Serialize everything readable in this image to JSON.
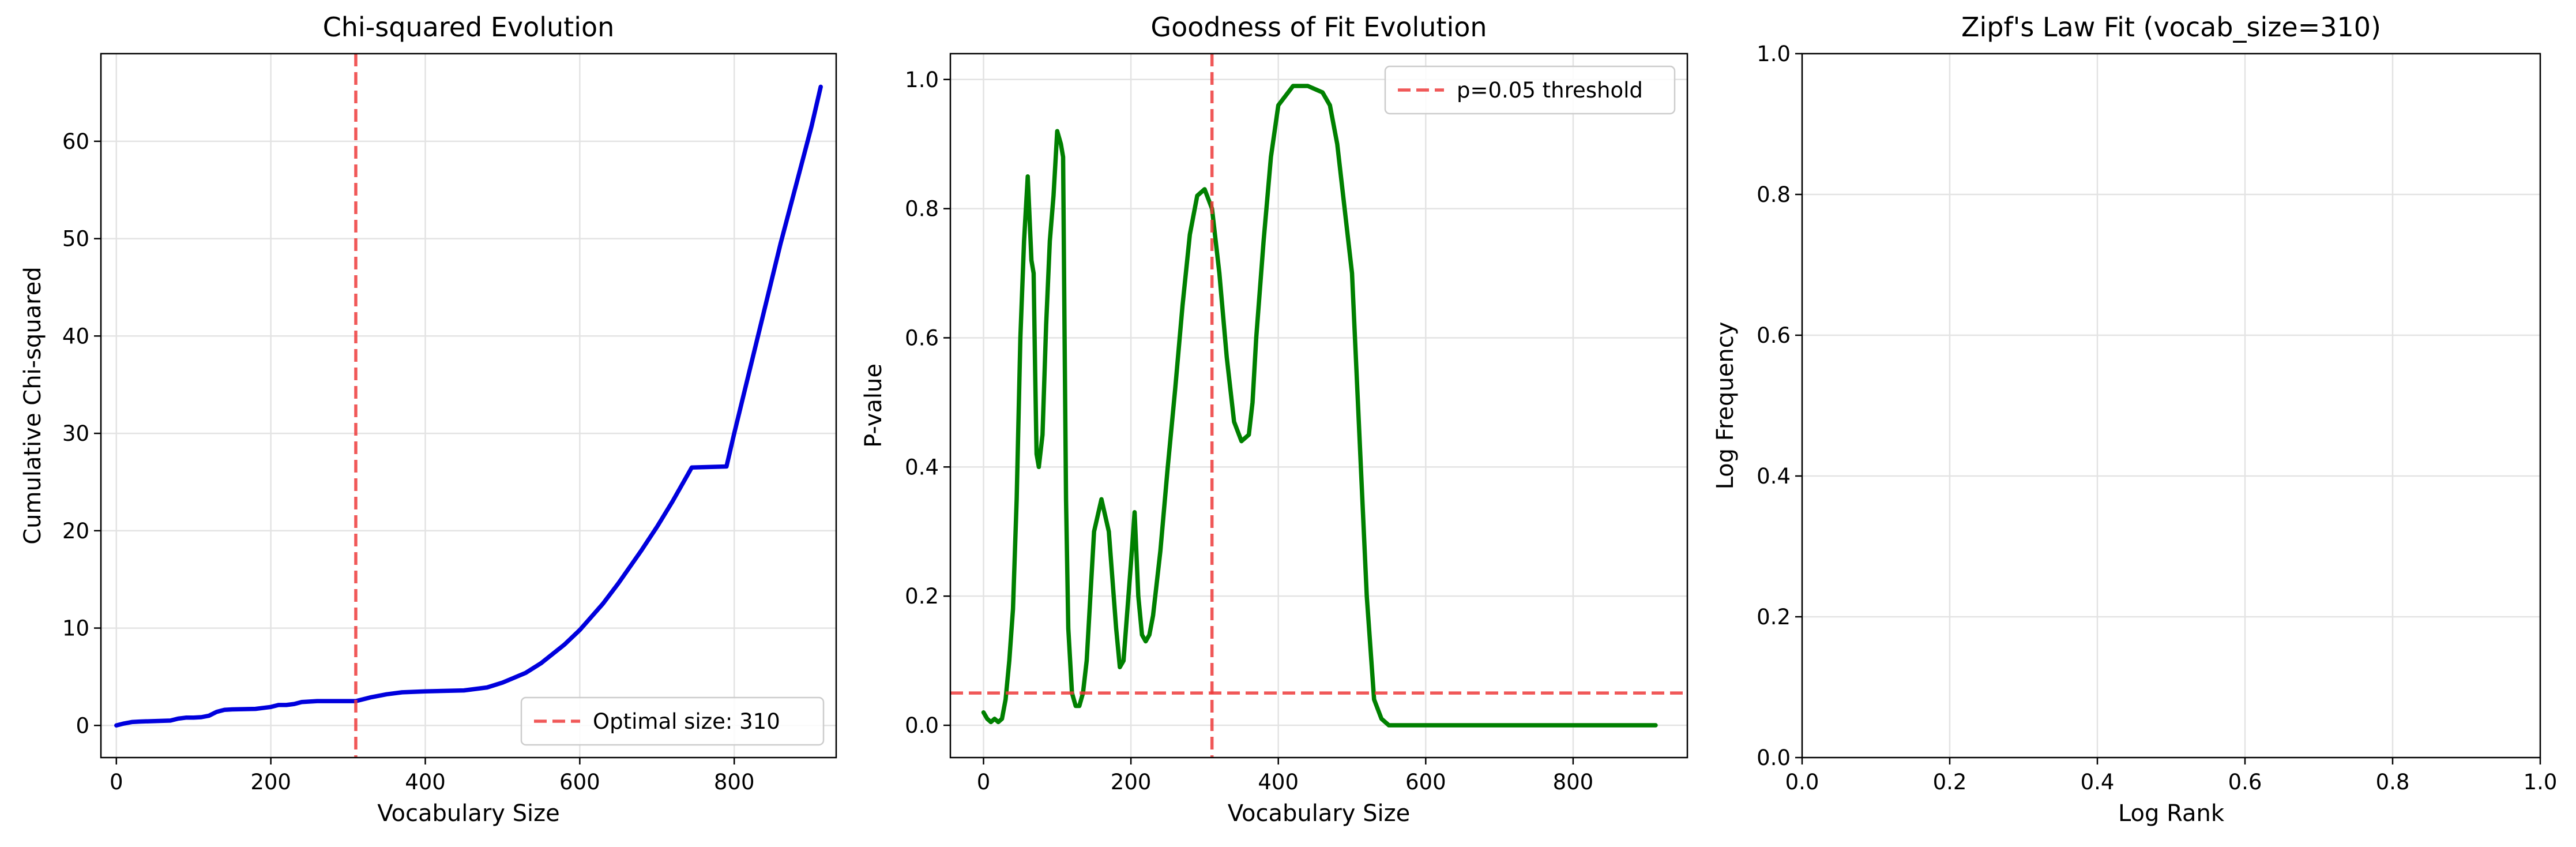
{
  "chart_data": [
    {
      "type": "line",
      "title": "Chi-squared Evolution",
      "xlabel": "Vocabulary Size",
      "ylabel": "Cumulative Chi-squared",
      "xlim": [
        -20,
        932
      ],
      "ylim": [
        -3.3,
        69
      ],
      "xticks": [
        0,
        200,
        400,
        600,
        800
      ],
      "yticks": [
        0,
        10,
        20,
        30,
        40,
        50,
        60
      ],
      "grid": true,
      "legend_position": "lower-right",
      "series": [
        {
          "color": "#0000dd",
          "x": [
            0,
            10,
            20,
            30,
            50,
            70,
            80,
            90,
            100,
            110,
            120,
            130,
            140,
            150,
            180,
            200,
            210,
            220,
            230,
            240,
            260,
            300,
            310,
            330,
            350,
            370,
            400,
            450,
            480,
            500,
            530,
            550,
            580,
            600,
            630,
            650,
            680,
            700,
            720,
            745,
            790,
            800,
            820,
            840,
            860,
            880,
            900,
            912
          ],
          "y": [
            0,
            0.2,
            0.35,
            0.4,
            0.45,
            0.5,
            0.7,
            0.8,
            0.8,
            0.85,
            1.0,
            1.4,
            1.6,
            1.65,
            1.7,
            1.9,
            2.1,
            2.1,
            2.2,
            2.4,
            2.5,
            2.5,
            2.5,
            2.9,
            3.2,
            3.4,
            3.5,
            3.6,
            3.9,
            4.4,
            5.4,
            6.4,
            8.3,
            9.8,
            12.5,
            14.6,
            18.0,
            20.4,
            23.0,
            26.5,
            26.6,
            30.0,
            36.5,
            43.0,
            49.5,
            55.5,
            61.5,
            65.6
          ]
        }
      ],
      "reference_lines": [
        {
          "orientation": "vertical",
          "value": 310,
          "color": "#ee3b3b",
          "label": "Optimal size: 310"
        }
      ]
    },
    {
      "type": "line",
      "title": "Goodness of Fit Evolution",
      "xlabel": "Vocabulary Size",
      "ylabel": "P-value",
      "xlim": [
        -45,
        955
      ],
      "ylim": [
        -0.05,
        1.04
      ],
      "xticks": [
        0,
        200,
        400,
        600,
        800
      ],
      "yticks": [
        0.0,
        0.2,
        0.4,
        0.6,
        0.8,
        1.0
      ],
      "grid": true,
      "legend_position": "top-right",
      "series": [
        {
          "color": "#008000",
          "x": [
            0,
            5,
            10,
            15,
            20,
            25,
            30,
            35,
            40,
            45,
            50,
            55,
            60,
            65,
            68,
            70,
            72,
            75,
            80,
            85,
            90,
            95,
            100,
            105,
            108,
            110,
            112,
            115,
            120,
            125,
            130,
            135,
            140,
            145,
            150,
            160,
            170,
            180,
            185,
            190,
            200,
            205,
            210,
            215,
            220,
            225,
            230,
            240,
            250,
            260,
            270,
            280,
            290,
            300,
            310,
            320,
            330,
            340,
            350,
            360,
            365,
            370,
            380,
            390,
            400,
            420,
            440,
            460,
            470,
            480,
            500,
            510,
            520,
            530,
            540,
            550,
            560,
            570,
            600,
            700,
            800,
            912
          ],
          "y": [
            0.02,
            0.01,
            0.005,
            0.01,
            0.005,
            0.01,
            0.04,
            0.1,
            0.18,
            0.35,
            0.6,
            0.75,
            0.85,
            0.72,
            0.7,
            0.55,
            0.42,
            0.4,
            0.45,
            0.62,
            0.75,
            0.82,
            0.92,
            0.9,
            0.88,
            0.6,
            0.35,
            0.15,
            0.05,
            0.03,
            0.03,
            0.05,
            0.1,
            0.2,
            0.3,
            0.35,
            0.3,
            0.15,
            0.09,
            0.1,
            0.25,
            0.33,
            0.2,
            0.14,
            0.13,
            0.14,
            0.17,
            0.27,
            0.4,
            0.52,
            0.65,
            0.76,
            0.82,
            0.83,
            0.8,
            0.7,
            0.57,
            0.47,
            0.44,
            0.45,
            0.5,
            0.6,
            0.75,
            0.88,
            0.96,
            0.99,
            0.99,
            0.98,
            0.96,
            0.9,
            0.7,
            0.45,
            0.2,
            0.04,
            0.01,
            0.0,
            0.0,
            0.0,
            0.0,
            0.0,
            0.0,
            0.0
          ]
        }
      ],
      "reference_lines": [
        {
          "orientation": "horizontal",
          "value": 0.05,
          "color": "#ee3b3b",
          "label": "p=0.05 threshold"
        },
        {
          "orientation": "vertical",
          "value": 310,
          "color": "#ee3b3b",
          "label": ""
        }
      ]
    },
    {
      "type": "line",
      "title": "Zipf's Law Fit (vocab_size=310)",
      "xlabel": "Log Rank",
      "ylabel": "Log Frequency",
      "xlim": [
        0,
        1
      ],
      "ylim": [
        0,
        1
      ],
      "xticks": [
        0.0,
        0.2,
        0.4,
        0.6,
        0.8,
        1.0
      ],
      "yticks": [
        0.0,
        0.2,
        0.4,
        0.6,
        0.8,
        1.0
      ],
      "grid": true,
      "series": [],
      "reference_lines": []
    }
  ]
}
